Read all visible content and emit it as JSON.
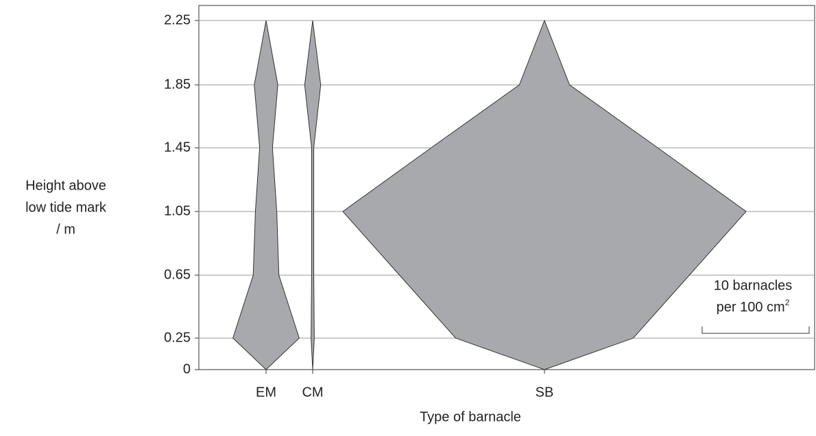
{
  "chart_data": {
    "type": "kite",
    "y_label_lines": [
      "Height above",
      "low tide mark",
      "/ m"
    ],
    "x_label": "Type of barnacle",
    "yticks": [
      0,
      0.25,
      0.65,
      1.05,
      1.45,
      1.85,
      2.25
    ],
    "color": "#a7a9ac",
    "grid": true,
    "series": [
      {
        "name": "EM",
        "values": [
          0,
          6.2,
          2.4,
          2.0,
          1.2,
          2.2,
          0
        ]
      },
      {
        "name": "CM",
        "values": [
          0,
          0.3,
          0.2,
          0.2,
          0.2,
          1.5,
          0
        ]
      },
      {
        "name": "SB",
        "values": [
          0,
          16.6,
          27.1,
          37.7,
          21.2,
          4.7,
          0
        ]
      }
    ],
    "scale_bar": {
      "value": 10,
      "line1": "10 barnacles",
      "line2": "per 100 cm",
      "sup": "2"
    }
  }
}
